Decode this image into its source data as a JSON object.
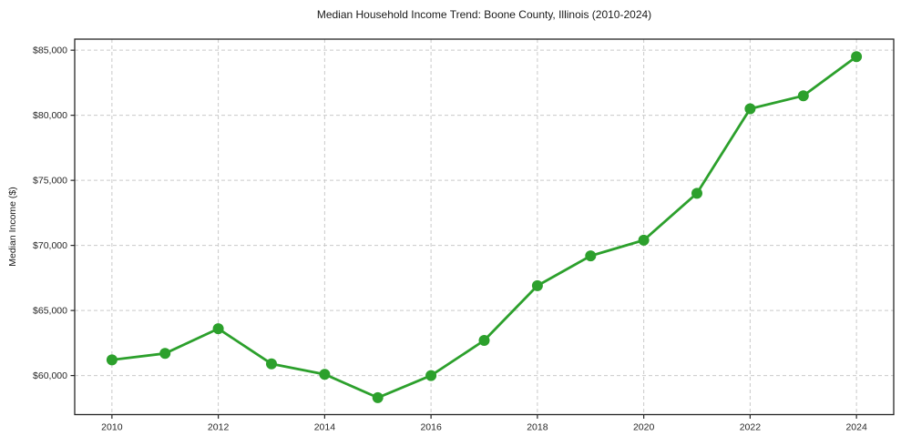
{
  "figure": {
    "title": "Median Household Income Trend: Boone County, Illinois (2010-2024)",
    "ylabel": "Median Income ($)"
  },
  "chart_data": {
    "type": "line",
    "title": "Median Household Income Trend: Boone County, Illinois (2010-2024)",
    "xlabel": "",
    "ylabel": "Median Income ($)",
    "x": [
      2010,
      2011,
      2012,
      2013,
      2014,
      2015,
      2016,
      2017,
      2018,
      2019,
      2020,
      2021,
      2022,
      2023,
      2024
    ],
    "values": [
      61200,
      61700,
      63600,
      60900,
      60100,
      58300,
      60000,
      62700,
      66900,
      69200,
      70400,
      74000,
      80500,
      81500,
      84500
    ],
    "series_name": "Median Household Income",
    "x_ticks": [
      2010,
      2012,
      2014,
      2016,
      2018,
      2020,
      2022,
      2024
    ],
    "x_tick_labels": [
      "2010",
      "2012",
      "2014",
      "2016",
      "2018",
      "2020",
      "2022",
      "2024"
    ],
    "y_ticks": [
      60000,
      65000,
      70000,
      75000,
      80000,
      85000
    ],
    "y_tick_labels": [
      "$60,000",
      "$65,000",
      "$70,000",
      "$75,000",
      "$80,000",
      "$85,000"
    ],
    "xlim": [
      2009.3,
      2024.7
    ],
    "ylim": [
      57000,
      85850
    ],
    "grid": true,
    "grid_style": "dashed",
    "legend": "none",
    "marker": "circle",
    "marker_size": 6,
    "line_width": 2.8,
    "colors": {
      "line": "#2ca02c",
      "marker": "#2ca02c",
      "grid": "#c9c9c9",
      "spine": "#262626",
      "tick_text": "#262626",
      "background": "#ffffff"
    }
  }
}
